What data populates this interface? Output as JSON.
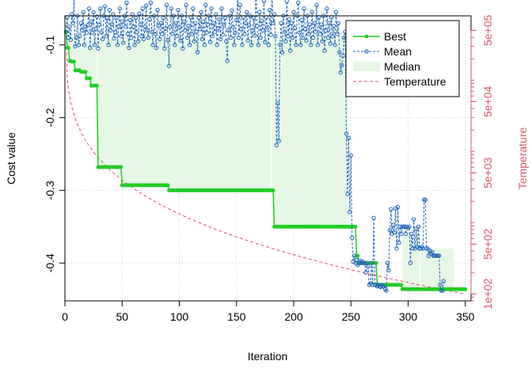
{
  "chart_data": {
    "type": "line",
    "title": "",
    "xlabel": "Iteration",
    "ylabel": "Cost value",
    "y2label": "Temperature",
    "xlim": [
      0,
      355
    ],
    "ylim": [
      -0.452,
      -0.06
    ],
    "y2_log": true,
    "y2lim": [
      80,
      800000
    ],
    "grid": true,
    "legend_position": "top-right",
    "x_ticks": [
      0,
      50,
      100,
      150,
      200,
      250,
      300,
      350
    ],
    "x_tick_labels": [
      "0",
      "50",
      "100",
      "150",
      "200",
      "250",
      "300",
      "350"
    ],
    "y_ticks": [
      -0.1,
      -0.2,
      -0.3,
      -0.4
    ],
    "y_tick_labels": [
      "-0.1",
      "-0.2",
      "-0.3",
      "-0.4"
    ],
    "y2_ticks": [
      100,
      500,
      5000,
      50000,
      500000
    ],
    "y2_tick_labels": [
      "1e+02",
      "5e+02",
      "5e+03",
      "5e+04",
      "5e+05"
    ],
    "colors": {
      "best": "#22CC22",
      "mean": "#2266BB",
      "median_fill": "#E6F7E6",
      "temperature": "#DF536B",
      "grid": "#D0D0D0"
    },
    "legend": [
      "Best",
      "Mean",
      "Median",
      "Temperature"
    ],
    "series": [
      {
        "name": "Best",
        "style": "step-points",
        "steps": [
          {
            "x0": 1,
            "x1": 1,
            "y": -0.082
          },
          {
            "x0": 2,
            "x1": 3,
            "y": -0.104
          },
          {
            "x0": 4,
            "x1": 5,
            "y": -0.122
          },
          {
            "x0": 6,
            "x1": 8,
            "y": -0.123
          },
          {
            "x0": 9,
            "x1": 13,
            "y": -0.135
          },
          {
            "x0": 14,
            "x1": 18,
            "y": -0.137
          },
          {
            "x0": 19,
            "x1": 22,
            "y": -0.146
          },
          {
            "x0": 23,
            "x1": 28,
            "y": -0.156
          },
          {
            "x0": 29,
            "x1": 49,
            "y": -0.268
          },
          {
            "x0": 50,
            "x1": 90,
            "y": -0.293
          },
          {
            "x0": 91,
            "x1": 182,
            "y": -0.3
          },
          {
            "x0": 183,
            "x1": 254,
            "y": -0.35
          },
          {
            "x0": 255,
            "x1": 256,
            "y": -0.39
          },
          {
            "x0": 257,
            "x1": 272,
            "y": -0.4
          },
          {
            "x0": 273,
            "x1": 294,
            "y": -0.43
          },
          {
            "x0": 295,
            "x1": 350,
            "y": -0.436
          }
        ]
      },
      {
        "name": "Mean",
        "style": "dashed-points",
        "x_start": 1,
        "values": [
          -0.082,
          -0.062,
          -0.09,
          -0.075,
          -0.093,
          -0.058,
          -0.07,
          -0.035,
          -0.102,
          -0.09,
          -0.06,
          -0.1,
          -0.088,
          -0.07,
          -0.08,
          -0.055,
          -0.1,
          -0.075,
          -0.083,
          -0.073,
          -0.05,
          -0.104,
          -0.068,
          -0.083,
          -0.055,
          -0.1,
          -0.078,
          -0.061,
          -0.105,
          -0.072,
          -0.05,
          -0.083,
          -0.092,
          -0.06,
          -0.047,
          -0.088,
          -0.063,
          -0.1,
          -0.052,
          -0.08,
          -0.072,
          -0.058,
          -0.091,
          -0.083,
          -0.063,
          -0.1,
          -0.075,
          -0.05,
          -0.088,
          -0.068,
          -0.097,
          -0.06,
          -0.075,
          -0.042,
          -0.085,
          -0.104,
          -0.066,
          -0.09,
          -0.058,
          -0.075,
          -0.1,
          -0.063,
          -0.082,
          -0.095,
          -0.057,
          -0.072,
          -0.088,
          -0.05,
          -0.092,
          -0.075,
          -0.046,
          -0.08,
          -0.09,
          -0.065,
          -0.042,
          -0.082,
          -0.1,
          -0.06,
          -0.085,
          -0.104,
          -0.052,
          -0.073,
          -0.092,
          -0.07,
          -0.085,
          -0.063,
          -0.105,
          -0.078,
          -0.045,
          -0.093,
          -0.129,
          -0.075,
          -0.05,
          -0.085,
          -0.06,
          -0.1,
          -0.07,
          -0.088,
          -0.052,
          -0.076,
          -0.094,
          -0.06,
          -0.105,
          -0.068,
          -0.08,
          -0.045,
          -0.09,
          -0.074,
          -0.1,
          -0.062,
          -0.085,
          -0.05,
          -0.095,
          -0.07,
          -0.082,
          -0.11,
          -0.063,
          -0.078,
          -0.055,
          -0.092,
          -0.068,
          -0.1,
          -0.045,
          -0.083,
          -0.072,
          -0.06,
          -0.096,
          -0.05,
          -0.088,
          -0.07,
          -0.082,
          -0.058,
          -0.1,
          -0.077,
          -0.065,
          -0.092,
          -0.05,
          -0.086,
          -0.072,
          -0.063,
          -0.095,
          -0.122,
          -0.08,
          -0.06,
          -0.09,
          -0.053,
          -0.075,
          -0.1,
          -0.083,
          -0.066,
          -0.032,
          -0.09,
          -0.045,
          -0.078,
          -0.1,
          -0.062,
          -0.085,
          -0.07,
          -0.055,
          -0.094,
          -0.073,
          -0.06,
          -0.1,
          -0.08,
          -0.063,
          -0.087,
          -0.028,
          -0.074,
          -0.1,
          -0.055,
          -0.09,
          -0.067,
          -0.08,
          -0.04,
          -0.096,
          -0.062,
          -0.076,
          -0.1,
          -0.052,
          -0.086,
          -0.03,
          -0.07,
          -0.058,
          -0.088,
          -0.238,
          -0.18,
          -0.232,
          -0.1,
          -0.07,
          -0.11,
          -0.06,
          -0.082,
          -0.095,
          -0.04,
          -0.088,
          -0.065,
          -0.108,
          -0.07,
          -0.09,
          -0.055,
          -0.077,
          -0.1,
          -0.06,
          -0.042,
          -0.083,
          -0.1,
          -0.066,
          -0.09,
          -0.05,
          -0.078,
          -0.094,
          -0.06,
          -0.085,
          -0.072,
          -0.1,
          -0.055,
          -0.09,
          -0.07,
          -0.082,
          -0.045,
          -0.1,
          -0.062,
          -0.085,
          -0.072,
          -0.095,
          -0.06,
          -0.108,
          -0.08,
          -0.05,
          -0.09,
          -0.07,
          -0.098,
          -0.062,
          -0.088,
          -0.074,
          -0.1,
          -0.055,
          -0.085,
          -0.07,
          -0.11,
          -0.138,
          -0.128,
          -0.115,
          -0.09,
          -0.082,
          -0.222,
          -0.305,
          -0.228,
          -0.33,
          -0.252,
          -0.365,
          -0.398,
          -0.39,
          -0.4,
          -0.396,
          -0.403,
          -0.4,
          -0.397,
          -0.4,
          -0.398,
          -0.4,
          -0.4,
          -0.413,
          -0.4,
          -0.405,
          -0.43,
          -0.428,
          -0.4,
          -0.43,
          -0.338,
          -0.43,
          -0.43,
          -0.432,
          -0.43,
          -0.432,
          -0.433,
          -0.43,
          -0.432,
          -0.432,
          -0.436,
          -0.438,
          -0.4,
          -0.41,
          -0.355,
          -0.326,
          -0.36,
          -0.348,
          -0.358,
          -0.325,
          -0.38,
          -0.323,
          -0.372,
          -0.35,
          -0.36,
          -0.35,
          -0.35,
          -0.35,
          -0.36,
          -0.35,
          -0.352,
          -0.35,
          -0.4,
          -0.36,
          -0.38,
          -0.34,
          -0.38,
          -0.353,
          -0.378,
          -0.35,
          -0.38,
          -0.38,
          -0.378,
          -0.38,
          -0.313,
          -0.313,
          -0.38,
          -0.38,
          -0.39,
          -0.383,
          -0.387,
          -0.385,
          -0.39,
          -0.39,
          -0.39,
          -0.39,
          -0.39,
          -0.39,
          -0.43,
          -0.438,
          -0.438,
          -0.425
        ]
      },
      {
        "name": "Median",
        "style": "filled-area",
        "segments": [
          {
            "x0": 1,
            "x1": 28,
            "upper": -0.093
          },
          {
            "x0": 29,
            "x1": 180,
            "upper": -0.093
          },
          {
            "x0": 181,
            "x1": 248,
            "upper": -0.09
          },
          {
            "x0": 258,
            "x1": 272,
            "upper": -0.4
          },
          {
            "x0": 295,
            "x1": 310,
            "upper": -0.36
          },
          {
            "x0": 311,
            "x1": 340,
            "upper": -0.38
          }
        ]
      },
      {
        "name": "Temperature",
        "style": "dashed-line",
        "axis": "right",
        "t0": 600000,
        "t_end": 100,
        "x0": 1,
        "x1": 350
      }
    ]
  }
}
